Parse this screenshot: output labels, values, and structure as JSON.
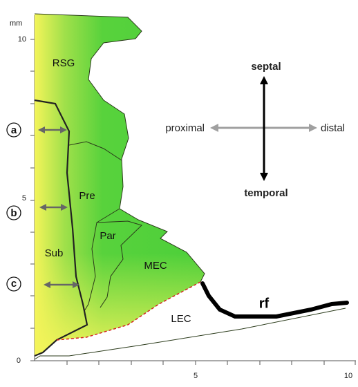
{
  "axis": {
    "unit": "mm",
    "y_ticks": [
      "10",
      "5",
      "0"
    ],
    "x_ticks": [
      "5",
      "10"
    ]
  },
  "regions": {
    "rsg": "RSG",
    "pre": "Pre",
    "par": "Par",
    "sub": "Sub",
    "mec": "MEC",
    "lec": "LEC"
  },
  "levels": [
    "a",
    "b",
    "c"
  ],
  "orientation": {
    "up": "septal",
    "down": "temporal",
    "left": "proximal",
    "right": "distal"
  },
  "fiber_label": "rf"
}
